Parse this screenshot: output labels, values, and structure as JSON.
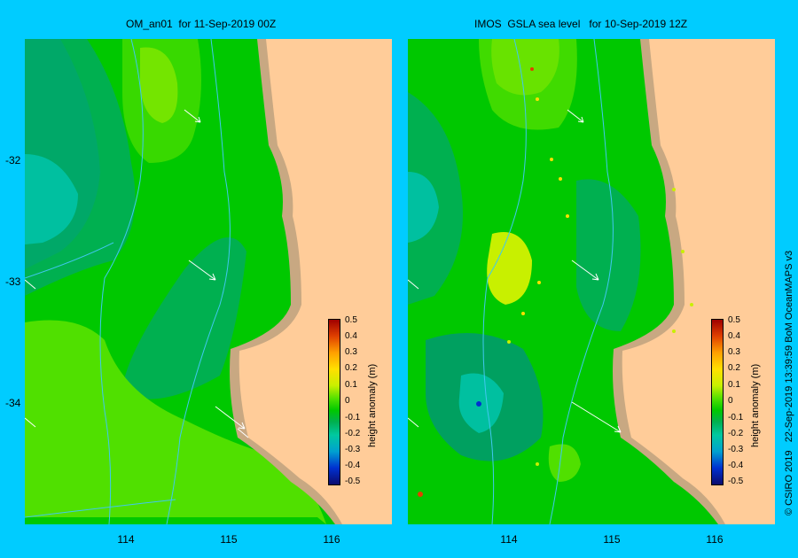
{
  "map": {
    "left_title": "OM_an01  for 11-Sep-2019 00Z",
    "right_title": "IMOS  GSLA sea level   for 10-Sep-2019 12Z",
    "lat_labels": [
      "-32",
      "-33",
      "-34"
    ],
    "lon_labels": [
      "114",
      "115",
      "116"
    ],
    "colorbar": {
      "label": "height anomaly (m)",
      "ticks": [
        "0.5",
        "0.4",
        "0.3",
        "0.2",
        "0.1",
        "0",
        "-0.1",
        "-0.2",
        "-0.3",
        "-0.4",
        "-0.5"
      ],
      "range": [
        -0.5,
        0.5
      ],
      "colors": [
        "#0B0B6E",
        "#0030D0",
        "#00A0D0",
        "#00C8A0",
        "#00B050",
        "#00C800",
        "#50E000",
        "#C8F000",
        "#FFE000",
        "#FFA000",
        "#E04000",
        "#A00000"
      ]
    },
    "credit": "© CSIRO 2019   22-Sep-2019 13:39:59 BoM OceanMAPS v3",
    "colors": {
      "background": "#00CCFF",
      "land": "#FFCC99",
      "coast_shelf": "#C8A882",
      "anomaly_zero": "#00C800",
      "anomaly_positive": "#C8F000",
      "anomaly_negative": "#00A060",
      "contour": "#40C8F0"
    }
  }
}
